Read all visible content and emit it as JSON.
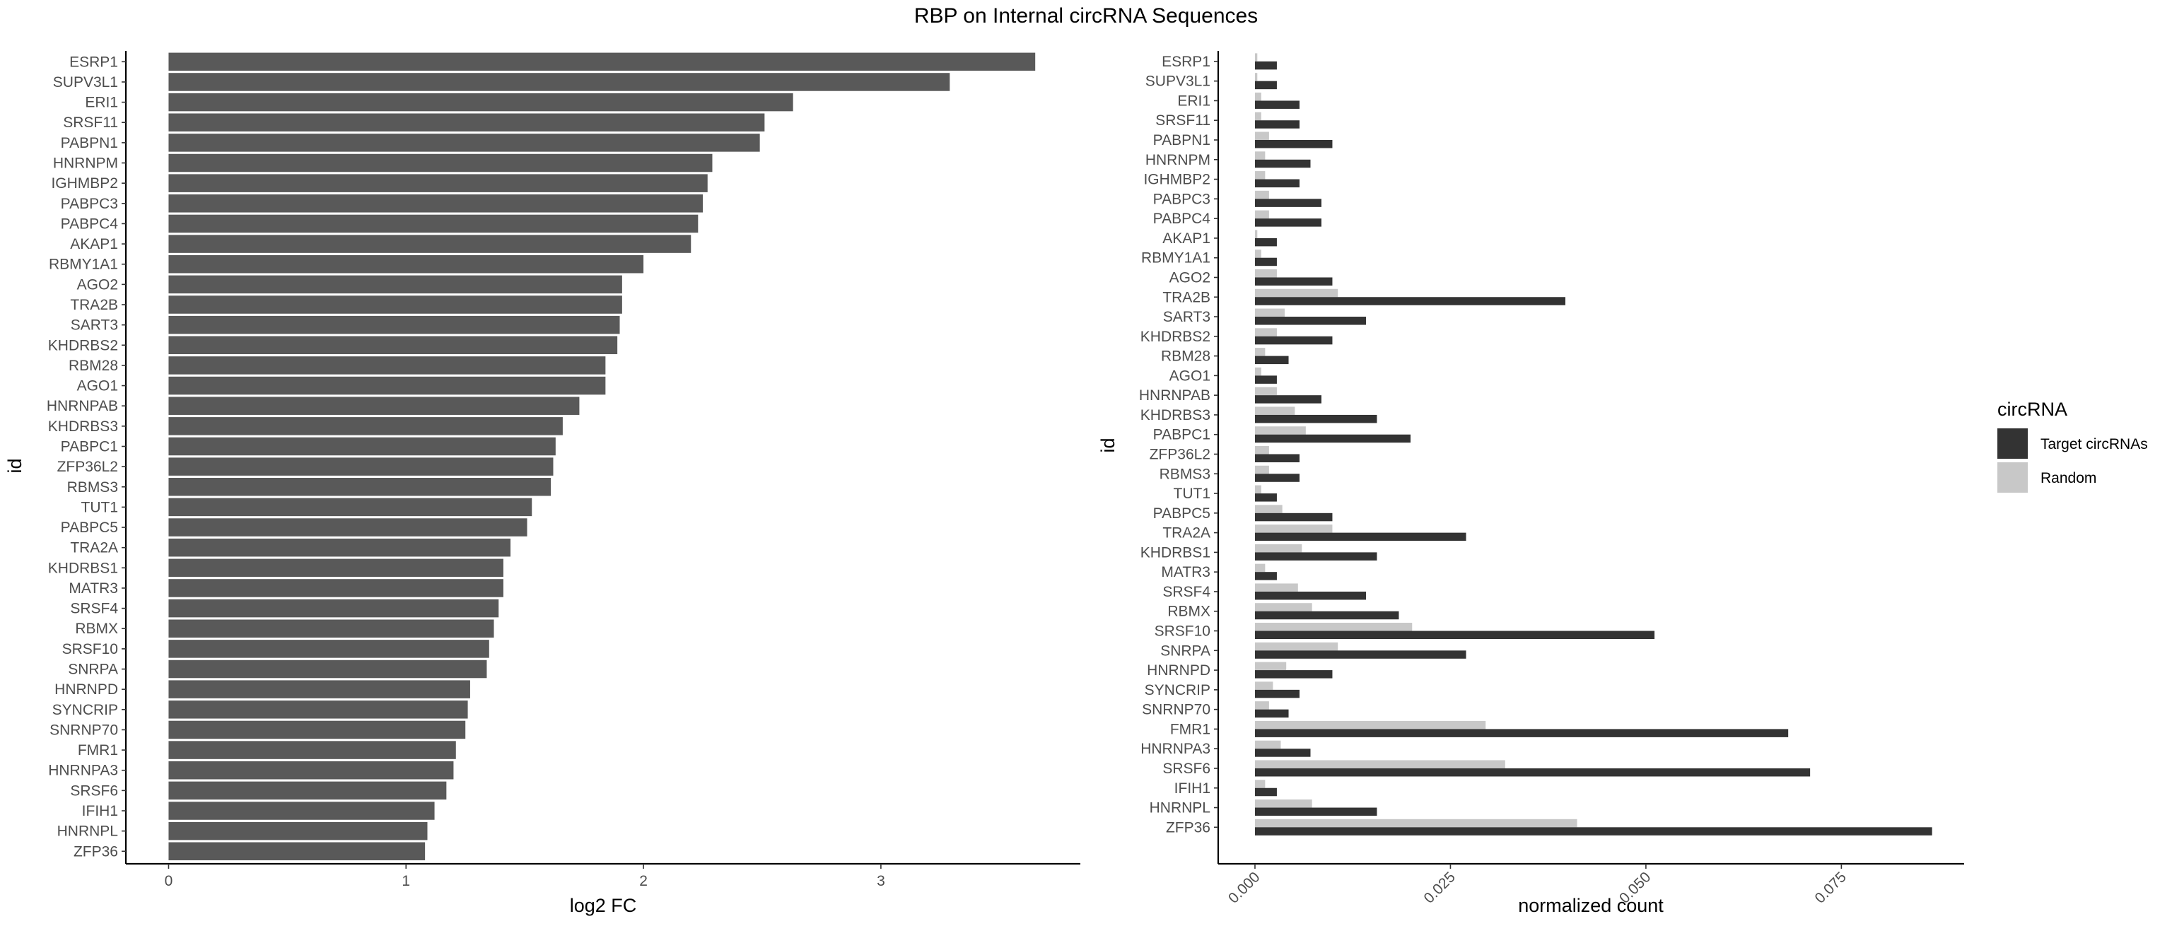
{
  "title": "RBP on Internal circRNA Sequences",
  "chart_data": [
    {
      "type": "bar",
      "orientation": "horizontal",
      "categories": [
        "ESRP1",
        "SUPV3L1",
        "ERI1",
        "SRSF11",
        "PABPN1",
        "HNRNPM",
        "IGHMBP2",
        "PABPC3",
        "PABPC4",
        "AKAP1",
        "RBMY1A1",
        "AGO2",
        "TRA2B",
        "SART3",
        "KHDRBS2",
        "RBM28",
        "AGO1",
        "HNRNPAB",
        "KHDRBS3",
        "PABPC1",
        "ZFP36L2",
        "RBMS3",
        "TUT1",
        "PABPC5",
        "TRA2A",
        "KHDRBS1",
        "MATR3",
        "SRSF4",
        "RBMX",
        "SRSF10",
        "SNRPA",
        "HNRNPD",
        "SYNCRIP",
        "SNRNP70",
        "FMR1",
        "HNRNPA3",
        "SRSF6",
        "IFIH1",
        "HNRNPL",
        "ZFP36"
      ],
      "values": [
        3.65,
        3.29,
        2.63,
        2.51,
        2.49,
        2.29,
        2.27,
        2.25,
        2.23,
        2.2,
        2.0,
        1.91,
        1.91,
        1.9,
        1.89,
        1.84,
        1.84,
        1.73,
        1.66,
        1.63,
        1.62,
        1.61,
        1.53,
        1.51,
        1.44,
        1.41,
        1.41,
        1.39,
        1.37,
        1.35,
        1.34,
        1.27,
        1.26,
        1.25,
        1.21,
        1.2,
        1.17,
        1.12,
        1.09,
        1.08
      ],
      "xlabel": "log2 FC",
      "ylabel": "id",
      "xlim": [
        -0.18,
        3.84
      ],
      "xticks": [
        "0",
        "1",
        "2",
        "3"
      ],
      "bar_color": "#595959",
      "grid": false
    },
    {
      "type": "bar",
      "orientation": "horizontal",
      "grouping": "dodge",
      "categories": [
        "ESRP1",
        "SUPV3L1",
        "ERI1",
        "SRSF11",
        "PABPN1",
        "HNRNPM",
        "IGHMBP2",
        "PABPC3",
        "PABPC4",
        "AKAP1",
        "RBMY1A1",
        "AGO2",
        "TRA2B",
        "SART3",
        "KHDRBS2",
        "RBM28",
        "AGO1",
        "HNRNPAB",
        "KHDRBS3",
        "PABPC1",
        "ZFP36L2",
        "RBMS3",
        "TUT1",
        "PABPC5",
        "TRA2A",
        "KHDRBS1",
        "MATR3",
        "SRSF4",
        "RBMX",
        "SRSF10",
        "SNRPA",
        "HNRNPD",
        "SYNCRIP",
        "SNRNP70",
        "FMR1",
        "HNRNPA3",
        "SRSF6",
        "IFIH1",
        "HNRNPL",
        "ZFP36"
      ],
      "series": [
        {
          "name": "Target circRNAs",
          "color": "#333333",
          "values": [
            0.0028,
            0.0028,
            0.0057,
            0.0057,
            0.0099,
            0.0071,
            0.0057,
            0.0085,
            0.0085,
            0.0028,
            0.0028,
            0.0099,
            0.0397,
            0.0142,
            0.0099,
            0.0043,
            0.0028,
            0.0085,
            0.0156,
            0.0199,
            0.0057,
            0.0057,
            0.0028,
            0.0099,
            0.027,
            0.0156,
            0.0028,
            0.0142,
            0.0184,
            0.0511,
            0.027,
            0.0099,
            0.0057,
            0.0043,
            0.0682,
            0.0071,
            0.071,
            0.0028,
            0.0156,
            0.0866
          ]
        },
        {
          "name": "Random",
          "color": "#c8c8c8",
          "values": [
            0.0003,
            0.0003,
            0.0008,
            0.0008,
            0.0018,
            0.0013,
            0.0013,
            0.0018,
            0.0018,
            0.0003,
            0.0008,
            0.0028,
            0.0106,
            0.0038,
            0.0028,
            0.0013,
            0.0008,
            0.0028,
            0.0051,
            0.0065,
            0.0018,
            0.0018,
            0.0008,
            0.0035,
            0.0099,
            0.006,
            0.0013,
            0.0055,
            0.0073,
            0.0201,
            0.0106,
            0.004,
            0.0023,
            0.0018,
            0.0295,
            0.0033,
            0.032,
            0.0013,
            0.0073,
            0.0412
          ]
        }
      ],
      "xlabel": "normalized count",
      "ylabel": "id",
      "xlim": [
        -0.0047,
        0.0907
      ],
      "xticks": [
        "0.000",
        "0.025",
        "0.050",
        "0.075"
      ],
      "legend": {
        "title": "circRNA",
        "position": "right"
      },
      "grid": false
    }
  ]
}
